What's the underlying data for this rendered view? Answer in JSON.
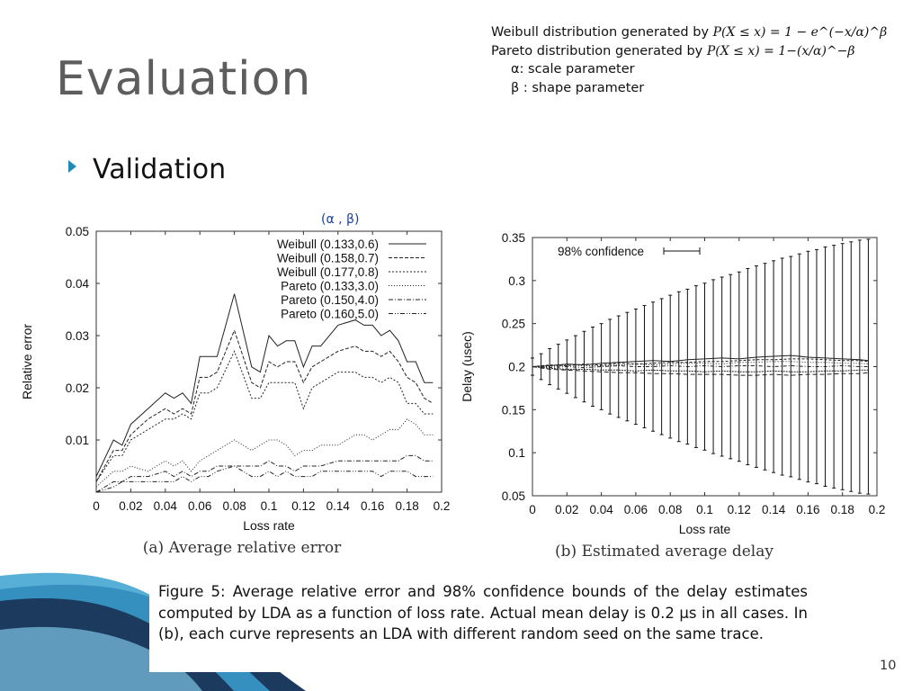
{
  "slide": {
    "title": "Evaluation",
    "bullet": "Validation",
    "page_number": "10"
  },
  "definitions": {
    "weibull_label": "Weibull distribution generated by",
    "weibull_formula": "P(X ≤ x) = 1 − e^(−x/α)^β",
    "pareto_label": "Pareto distribution generated by",
    "pareto_formula": "P(X ≤ x) = 1−(x/α)^−β",
    "alpha_desc": "α: scale parameter",
    "beta_desc": "β : shape parameter"
  },
  "param_note": "(α , β)",
  "caption": "Figure 5: Average relative error and 98% confidence bounds of the delay estimates computed by LDA as a function of loss rate. Actual mean delay is 0.2 μs in all cases. In (b), each curve represents an LDA with different random seed on the same trace.",
  "colors": {
    "accent": "#1e8ab5",
    "decor_dark": "#1c3a5e",
    "decor_blue": "#3aa0d0",
    "note": "#1a3f9c"
  },
  "chart_data": [
    {
      "type": "line",
      "subtitle": "(a) Average relative error",
      "xlabel": "Loss rate",
      "ylabel": "Relative error",
      "xlim": [
        0,
        0.2
      ],
      "ylim": [
        0,
        0.05
      ],
      "x_ticks": [
        "0",
        "0.02",
        "0.04",
        "0.06",
        "0.08",
        "0.1",
        "0.12",
        "0.14",
        "0.16",
        "0.18",
        "0.2"
      ],
      "y_ticks": [
        "0.01",
        "0.02",
        "0.03",
        "0.04",
        "0.05"
      ],
      "legend_position": "top-right",
      "x": [
        0,
        0.01,
        0.015,
        0.02,
        0.03,
        0.04,
        0.045,
        0.05,
        0.055,
        0.06,
        0.065,
        0.07,
        0.08,
        0.09,
        0.095,
        0.1,
        0.105,
        0.11,
        0.115,
        0.12,
        0.125,
        0.13,
        0.14,
        0.15,
        0.155,
        0.16,
        0.165,
        0.17,
        0.175,
        0.18,
        0.185,
        0.19,
        0.195
      ],
      "series": [
        {
          "name": "Weibull (0.133,0.6)",
          "style": "solid",
          "values": [
            0.003,
            0.01,
            0.009,
            0.013,
            0.016,
            0.019,
            0.018,
            0.019,
            0.017,
            0.026,
            0.026,
            0.026,
            0.038,
            0.024,
            0.023,
            0.03,
            0.028,
            0.029,
            0.029,
            0.024,
            0.028,
            0.028,
            0.032,
            0.033,
            0.032,
            0.032,
            0.03,
            0.031,
            0.029,
            0.025,
            0.025,
            0.021,
            0.021
          ]
        },
        {
          "name": "Weibull (0.158,0.7)",
          "style": "dashed",
          "values": [
            0.002,
            0.008,
            0.008,
            0.011,
            0.014,
            0.016,
            0.015,
            0.016,
            0.015,
            0.022,
            0.022,
            0.023,
            0.031,
            0.021,
            0.02,
            0.025,
            0.024,
            0.025,
            0.025,
            0.021,
            0.024,
            0.025,
            0.027,
            0.028,
            0.027,
            0.027,
            0.026,
            0.027,
            0.025,
            0.022,
            0.021,
            0.018,
            0.017
          ]
        },
        {
          "name": "Weibull (0.177,0.8)",
          "style": "dotted",
          "values": [
            0.002,
            0.007,
            0.007,
            0.01,
            0.012,
            0.014,
            0.014,
            0.015,
            0.014,
            0.019,
            0.019,
            0.02,
            0.027,
            0.018,
            0.018,
            0.021,
            0.021,
            0.021,
            0.021,
            0.016,
            0.02,
            0.021,
            0.023,
            0.023,
            0.022,
            0.022,
            0.021,
            0.022,
            0.021,
            0.017,
            0.017,
            0.015,
            0.015
          ]
        },
        {
          "name": "Pareto (0.133,3.0)",
          "style": "dotted-fine",
          "values": [
            0.001,
            0.004,
            0.004,
            0.005,
            0.004,
            0.006,
            0.005,
            0.006,
            0.004,
            0.006,
            0.007,
            0.008,
            0.01,
            0.008,
            0.009,
            0.01,
            0.01,
            0.009,
            0.007,
            0.008,
            0.008,
            0.009,
            0.009,
            0.011,
            0.011,
            0.01,
            0.011,
            0.012,
            0.012,
            0.014,
            0.013,
            0.011,
            0.011
          ]
        },
        {
          "name": "Pareto (0.150,4.0)",
          "style": "dash-dot",
          "values": [
            0.0,
            0.002,
            0.002,
            0.003,
            0.003,
            0.004,
            0.003,
            0.004,
            0.003,
            0.004,
            0.004,
            0.005,
            0.005,
            0.005,
            0.005,
            0.006,
            0.005,
            0.005,
            0.004,
            0.005,
            0.005,
            0.005,
            0.006,
            0.006,
            0.006,
            0.006,
            0.006,
            0.006,
            0.006,
            0.007,
            0.007,
            0.006,
            0.006
          ]
        },
        {
          "name": "Pareto (0.160,5.0)",
          "style": "dash-dot-dot",
          "values": [
            0.0,
            0.001,
            0.002,
            0.002,
            0.002,
            0.002,
            0.002,
            0.003,
            0.002,
            0.003,
            0.003,
            0.004,
            0.005,
            0.003,
            0.003,
            0.004,
            0.003,
            0.004,
            0.003,
            0.003,
            0.003,
            0.004,
            0.004,
            0.004,
            0.004,
            0.004,
            0.003,
            0.004,
            0.004,
            0.004,
            0.003,
            0.003,
            0.003
          ]
        }
      ]
    },
    {
      "type": "line",
      "subtitle": "(b) Estimated average delay",
      "xlabel": "Loss rate",
      "ylabel": "Delay (usec)",
      "xlim": [
        0,
        0.2
      ],
      "ylim": [
        0.05,
        0.35
      ],
      "x_ticks": [
        "0",
        "0.02",
        "0.04",
        "0.06",
        "0.08",
        "0.1",
        "0.12",
        "0.14",
        "0.16",
        "0.18",
        "0.2"
      ],
      "y_ticks": [
        "0.05",
        "0.1",
        "0.15",
        "0.2",
        "0.25",
        "0.3",
        "0.35"
      ],
      "legend_position": "top-left",
      "legend_entry": "98% confidence",
      "error_bars": {
        "x": [
          0,
          0.005,
          0.01,
          0.015,
          0.02,
          0.025,
          0.03,
          0.035,
          0.04,
          0.045,
          0.05,
          0.055,
          0.06,
          0.065,
          0.07,
          0.075,
          0.08,
          0.085,
          0.09,
          0.095,
          0.1,
          0.105,
          0.11,
          0.115,
          0.12,
          0.125,
          0.13,
          0.135,
          0.14,
          0.145,
          0.15,
          0.155,
          0.16,
          0.165,
          0.17,
          0.175,
          0.18,
          0.185,
          0.19,
          0.195
        ],
        "center": 0.2,
        "half_width": [
          0.01,
          0.015,
          0.021,
          0.026,
          0.031,
          0.036,
          0.041,
          0.046,
          0.05,
          0.055,
          0.059,
          0.063,
          0.067,
          0.071,
          0.075,
          0.079,
          0.083,
          0.087,
          0.09,
          0.094,
          0.097,
          0.101,
          0.104,
          0.107,
          0.11,
          0.114,
          0.117,
          0.12,
          0.123,
          0.126,
          0.128,
          0.131,
          0.134,
          0.136,
          0.139,
          0.141,
          0.143,
          0.145,
          0.147,
          0.148
        ]
      },
      "x": [
        0,
        0.01,
        0.02,
        0.03,
        0.04,
        0.05,
        0.06,
        0.07,
        0.08,
        0.09,
        0.1,
        0.11,
        0.12,
        0.13,
        0.14,
        0.15,
        0.16,
        0.17,
        0.18,
        0.19,
        0.195
      ],
      "series": [
        {
          "values": [
            0.2,
            0.201,
            0.203,
            0.202,
            0.204,
            0.205,
            0.206,
            0.207,
            0.206,
            0.208,
            0.209,
            0.21,
            0.209,
            0.211,
            0.212,
            0.213,
            0.211,
            0.21,
            0.209,
            0.208,
            0.207
          ]
        },
        {
          "values": [
            0.2,
            0.202,
            0.201,
            0.203,
            0.202,
            0.204,
            0.203,
            0.204,
            0.205,
            0.205,
            0.206,
            0.206,
            0.207,
            0.208,
            0.208,
            0.209,
            0.209,
            0.208,
            0.207,
            0.207,
            0.206
          ]
        },
        {
          "values": [
            0.2,
            0.2,
            0.202,
            0.201,
            0.201,
            0.202,
            0.203,
            0.202,
            0.203,
            0.204,
            0.204,
            0.203,
            0.205,
            0.205,
            0.206,
            0.206,
            0.205,
            0.205,
            0.204,
            0.204,
            0.203
          ]
        },
        {
          "values": [
            0.2,
            0.199,
            0.2,
            0.199,
            0.2,
            0.201,
            0.2,
            0.2,
            0.201,
            0.2,
            0.201,
            0.2,
            0.201,
            0.201,
            0.2,
            0.201,
            0.2,
            0.2,
            0.201,
            0.2,
            0.2
          ]
        },
        {
          "values": [
            0.2,
            0.198,
            0.197,
            0.197,
            0.196,
            0.196,
            0.195,
            0.196,
            0.195,
            0.195,
            0.194,
            0.195,
            0.194,
            0.194,
            0.195,
            0.194,
            0.194,
            0.195,
            0.195,
            0.196,
            0.196
          ]
        },
        {
          "values": [
            0.2,
            0.197,
            0.196,
            0.195,
            0.194,
            0.193,
            0.193,
            0.192,
            0.192,
            0.191,
            0.191,
            0.191,
            0.19,
            0.19,
            0.191,
            0.19,
            0.191,
            0.191,
            0.192,
            0.192,
            0.193
          ]
        }
      ]
    }
  ]
}
